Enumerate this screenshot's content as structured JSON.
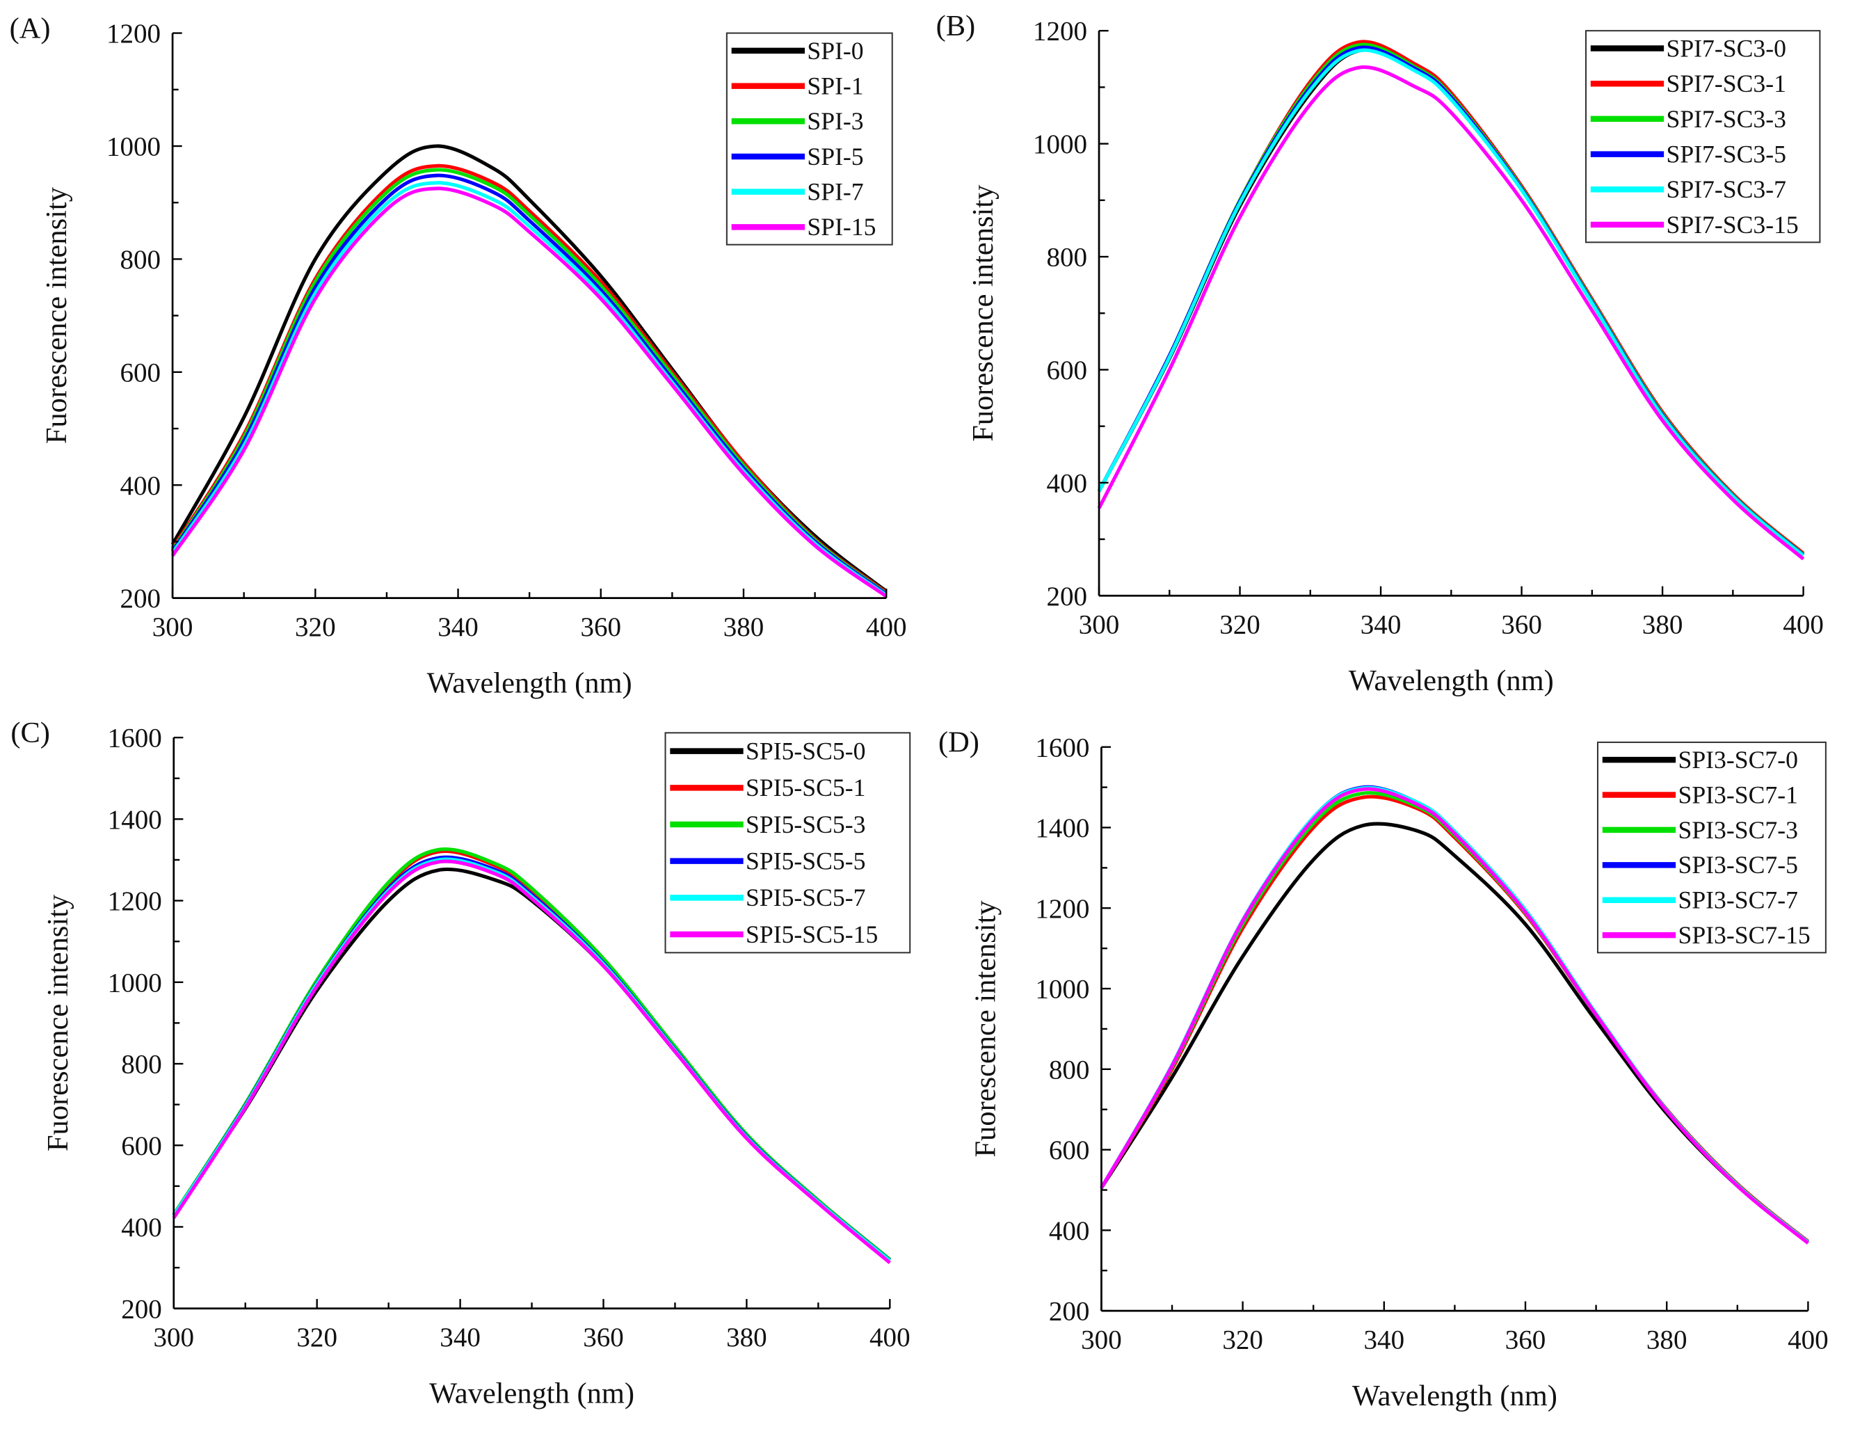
{
  "chart_data": [
    {
      "type": "line",
      "panel_label": "(A)",
      "xlabel": "Wavelength (nm)",
      "ylabel": "Fuorescence intensity",
      "xlim": [
        300,
        400
      ],
      "ylim": [
        200,
        1200
      ],
      "xticks": [
        300,
        320,
        340,
        360,
        380,
        400
      ],
      "yticks": [
        200,
        400,
        600,
        800,
        1000,
        1200
      ],
      "legend_position": "top-right",
      "grid": false,
      "x": [
        300,
        310,
        320,
        330,
        337,
        345,
        350,
        360,
        370,
        380,
        390,
        400
      ],
      "series": [
        {
          "name": "SPI-0",
          "color": "#000000",
          "values": [
            295,
            520,
            800,
            955,
            1000,
            960,
            905,
            770,
            605,
            440,
            310,
            212
          ]
        },
        {
          "name": "SPI-1",
          "color": "#ff0000",
          "values": [
            288,
            490,
            765,
            925,
            965,
            935,
            885,
            760,
            600,
            440,
            305,
            210
          ]
        },
        {
          "name": "SPI-3",
          "color": "#00e000",
          "values": [
            285,
            485,
            760,
            918,
            958,
            928,
            878,
            753,
            595,
            435,
            303,
            208
          ]
        },
        {
          "name": "SPI-5",
          "color": "#0000ff",
          "values": [
            283,
            478,
            750,
            908,
            948,
            918,
            868,
            745,
            588,
            430,
            300,
            207
          ]
        },
        {
          "name": "SPI-7",
          "color": "#00ffff",
          "values": [
            280,
            470,
            740,
            898,
            935,
            905,
            858,
            738,
            582,
            425,
            297,
            205
          ]
        },
        {
          "name": "SPI-15",
          "color": "#ff00ff",
          "values": [
            275,
            462,
            730,
            888,
            925,
            895,
            848,
            730,
            577,
            420,
            293,
            203
          ]
        }
      ]
    },
    {
      "type": "line",
      "panel_label": "(B)",
      "xlabel": "Wavelength (nm)",
      "ylabel": "Fuorescence intensity",
      "xlim": [
        300,
        400
      ],
      "ylim": [
        200,
        1200
      ],
      "xticks": [
        300,
        320,
        340,
        360,
        380,
        400
      ],
      "yticks": [
        200,
        400,
        600,
        800,
        1000,
        1200
      ],
      "legend_position": "top-right",
      "grid": false,
      "x": [
        300,
        310,
        320,
        330,
        337,
        345,
        350,
        360,
        370,
        380,
        390,
        400
      ],
      "series": [
        {
          "name": "SPI7-SC3-0",
          "color": "#000000",
          "values": [
            385,
            620,
            890,
            1090,
            1165,
            1130,
            1080,
            920,
            720,
            520,
            380,
            272
          ]
        },
        {
          "name": "SPI7-SC3-1",
          "color": "#ff0000",
          "values": [
            385,
            625,
            900,
            1110,
            1180,
            1140,
            1090,
            925,
            725,
            525,
            380,
            275
          ]
        },
        {
          "name": "SPI7-SC3-3",
          "color": "#00e000",
          "values": [
            385,
            625,
            900,
            1105,
            1175,
            1135,
            1085,
            922,
            722,
            522,
            378,
            273
          ]
        },
        {
          "name": "SPI7-SC3-5",
          "color": "#0000ff",
          "values": [
            385,
            625,
            898,
            1100,
            1170,
            1132,
            1082,
            920,
            720,
            520,
            377,
            272
          ]
        },
        {
          "name": "SPI7-SC3-7",
          "color": "#00ffff",
          "values": [
            385,
            622,
            895,
            1095,
            1165,
            1128,
            1078,
            918,
            718,
            518,
            376,
            271
          ]
        },
        {
          "name": "SPI7-SC3-15",
          "color": "#ff00ff",
          "values": [
            355,
            600,
            870,
            1070,
            1135,
            1100,
            1055,
            900,
            705,
            510,
            370,
            265
          ]
        }
      ]
    },
    {
      "type": "line",
      "panel_label": "(C)",
      "xlabel": "Wavelength (nm)",
      "ylabel": "Fuorescence intensity",
      "xlim": [
        300,
        400
      ],
      "ylim": [
        200,
        1600
      ],
      "xticks": [
        300,
        320,
        340,
        360,
        380,
        400
      ],
      "yticks": [
        200,
        400,
        600,
        800,
        1000,
        1200,
        1400,
        1600
      ],
      "legend_position": "top-right",
      "grid": false,
      "x": [
        300,
        310,
        320,
        330,
        337,
        345,
        350,
        360,
        370,
        380,
        390,
        400
      ],
      "series": [
        {
          "name": "SPI5-SC5-0",
          "color": "#000000",
          "values": [
            430,
            690,
            980,
            1200,
            1275,
            1250,
            1200,
            1040,
            830,
            620,
            460,
            318
          ]
        },
        {
          "name": "SPI5-SC5-1",
          "color": "#ff0000",
          "values": [
            430,
            700,
            1000,
            1240,
            1320,
            1285,
            1225,
            1055,
            840,
            625,
            465,
            320
          ]
        },
        {
          "name": "SPI5-SC5-3",
          "color": "#00e000",
          "values": [
            430,
            702,
            1005,
            1245,
            1325,
            1290,
            1230,
            1058,
            842,
            627,
            465,
            320
          ]
        },
        {
          "name": "SPI5-SC5-5",
          "color": "#0000ff",
          "values": [
            428,
            698,
            998,
            1230,
            1305,
            1275,
            1215,
            1048,
            835,
            622,
            462,
            318
          ]
        },
        {
          "name": "SPI5-SC5-7",
          "color": "#00ffff",
          "values": [
            428,
            696,
            996,
            1225,
            1300,
            1270,
            1210,
            1045,
            833,
            620,
            461,
            317
          ]
        },
        {
          "name": "SPI5-SC5-15",
          "color": "#ff00ff",
          "values": [
            422,
            692,
            990,
            1220,
            1295,
            1265,
            1205,
            1040,
            830,
            617,
            458,
            312
          ]
        }
      ]
    },
    {
      "type": "line",
      "panel_label": "(D)",
      "xlabel": "Wavelength (nm)",
      "ylabel": "Fuorescence intensity",
      "xlim": [
        300,
        400
      ],
      "ylim": [
        200,
        1600
      ],
      "xticks": [
        300,
        320,
        340,
        360,
        380,
        400
      ],
      "yticks": [
        200,
        400,
        600,
        800,
        1000,
        1200,
        1400,
        1600
      ],
      "legend_position": "top-right",
      "grid": false,
      "x": [
        300,
        310,
        320,
        330,
        337,
        345,
        350,
        360,
        370,
        380,
        390,
        400
      ],
      "series": [
        {
          "name": "SPI3-SC7-0",
          "color": "#000000",
          "values": [
            505,
            780,
            1080,
            1320,
            1405,
            1390,
            1330,
            1160,
            920,
            690,
            510,
            372
          ]
        },
        {
          "name": "SPI3-SC7-1",
          "color": "#ff0000",
          "values": [
            505,
            800,
            1150,
            1400,
            1475,
            1445,
            1375,
            1185,
            935,
            700,
            515,
            372
          ]
        },
        {
          "name": "SPI3-SC7-3",
          "color": "#00e000",
          "values": [
            505,
            805,
            1160,
            1410,
            1485,
            1450,
            1380,
            1188,
            935,
            698,
            513,
            370
          ]
        },
        {
          "name": "SPI3-SC7-5",
          "color": "#0000ff",
          "values": [
            505,
            810,
            1170,
            1425,
            1500,
            1460,
            1390,
            1195,
            938,
            698,
            512,
            370
          ]
        },
        {
          "name": "SPI3-SC7-7",
          "color": "#00ffff",
          "values": [
            505,
            810,
            1170,
            1425,
            1498,
            1460,
            1390,
            1195,
            938,
            698,
            512,
            370
          ]
        },
        {
          "name": "SPI3-SC7-15",
          "color": "#ff00ff",
          "values": [
            505,
            808,
            1168,
            1420,
            1495,
            1455,
            1385,
            1190,
            935,
            696,
            510,
            368
          ]
        }
      ]
    }
  ]
}
